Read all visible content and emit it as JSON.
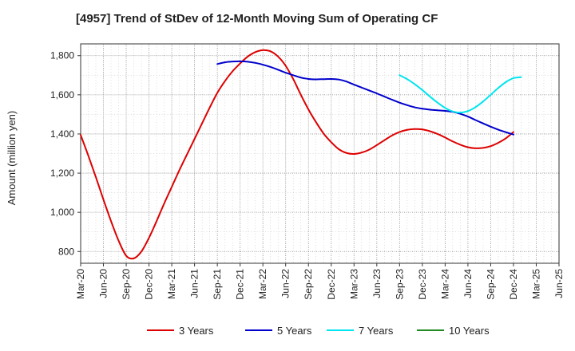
{
  "chart_data": {
    "type": "line",
    "title": "[4957]  Trend of StDev of 12-Month Moving Sum of Operating CF",
    "xlabel": "",
    "ylabel": "Amount (million yen)",
    "ylim": [
      740,
      1860
    ],
    "yticks": [
      800,
      1000,
      1200,
      1400,
      1600,
      1800
    ],
    "ytick_labels": [
      "800",
      "1,000",
      "1,200",
      "1,400",
      "1,600",
      "1,800"
    ],
    "x_tick_labels": [
      "Mar-20",
      "Jun-20",
      "Sep-20",
      "Dec-20",
      "Mar-21",
      "Jun-21",
      "Sep-21",
      "Dec-21",
      "Mar-22",
      "Jun-22",
      "Sep-22",
      "Dec-22",
      "Mar-23",
      "Jun-23",
      "Sep-23",
      "Dec-23",
      "Mar-24",
      "Jun-24",
      "Sep-24",
      "Dec-24",
      "Mar-25",
      "Jun-25"
    ],
    "x_range_months": [
      0,
      63
    ],
    "grid": true,
    "legend_position": "bottom",
    "series": [
      {
        "name": "3 Years",
        "color": "#dd0000",
        "start_month": 0,
        "values": [
          1395,
          1290,
          1180,
          1065,
          955,
          855,
          778,
          765,
          800,
          870,
          955,
          1045,
          1130,
          1215,
          1295,
          1375,
          1455,
          1535,
          1610,
          1670,
          1720,
          1760,
          1795,
          1818,
          1828,
          1822,
          1795,
          1748,
          1680,
          1600,
          1525,
          1460,
          1402,
          1358,
          1322,
          1303,
          1298,
          1305,
          1320,
          1343,
          1368,
          1392,
          1410,
          1421,
          1425,
          1423,
          1414,
          1400,
          1382,
          1362,
          1345,
          1332,
          1327,
          1329,
          1338,
          1355,
          1378,
          1410
        ]
      },
      {
        "name": "5 Years",
        "color": "#0000cc",
        "start_month": 18,
        "values": [
          1757,
          1766,
          1770,
          1771,
          1769,
          1763,
          1754,
          1742,
          1728,
          1713,
          1700,
          1688,
          1681,
          1679,
          1680,
          1681,
          1678,
          1668,
          1652,
          1637,
          1622,
          1607,
          1591,
          1575,
          1560,
          1547,
          1536,
          1529,
          1524,
          1521,
          1518,
          1513,
          1503,
          1489,
          1471,
          1454,
          1437,
          1422,
          1409,
          1397
        ]
      },
      {
        "name": "7 Years",
        "color": "#00e5ee",
        "start_month": 42,
        "values": [
          1700,
          1680,
          1654,
          1624,
          1591,
          1560,
          1533,
          1515,
          1509,
          1517,
          1537,
          1566,
          1600,
          1635,
          1665,
          1685,
          1690
        ]
      },
      {
        "name": "10 Years",
        "color": "#228b22",
        "start_month": 0,
        "values": []
      }
    ]
  }
}
